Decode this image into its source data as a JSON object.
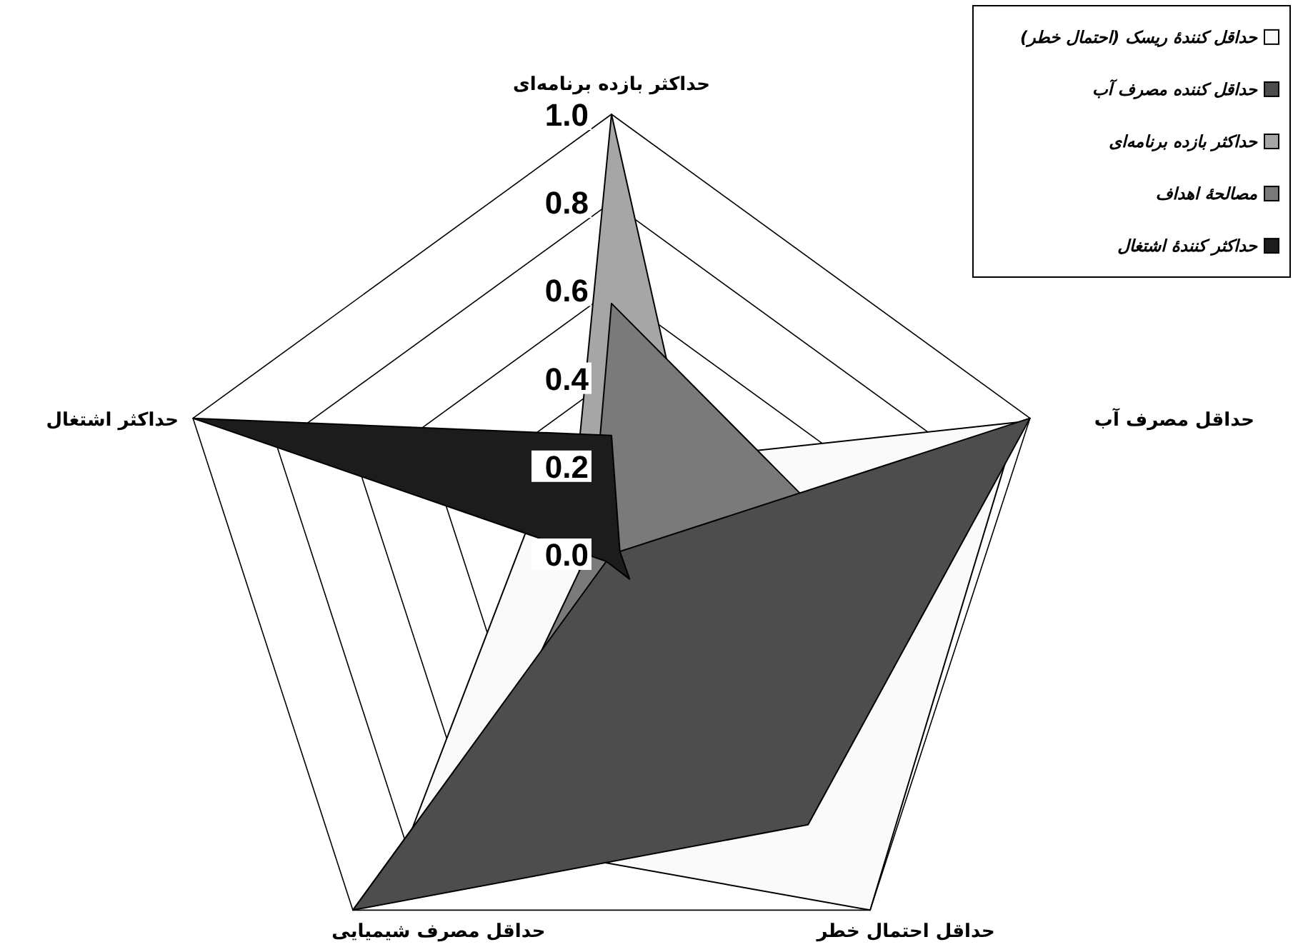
{
  "chart_data": {
    "type": "radar",
    "categories": [
      "حداکثر بازده برنامه‌ای",
      "حداقل مصرف آب",
      "حداقل احتمال خطر",
      "حداقل مصرف شیمیایی",
      "حداکثر اشتغال"
    ],
    "series": [
      {
        "name": "حداقل کنندهٔ ریسک (احتمال خطر)",
        "color": "#fafafa",
        "values": [
          0.2,
          0.97,
          1.0,
          0.77,
          0.2
        ]
      },
      {
        "name": "حداقل کننده مصرف آب",
        "color": "#4d4d4d",
        "values": [
          0.0,
          1.0,
          0.76,
          1.0,
          0.0
        ]
      },
      {
        "name": "حداکثر بازده برنامه‌ای",
        "color": "#a6a6a6",
        "values": [
          1.0,
          0.22,
          0.1,
          0.1,
          0.1
        ]
      },
      {
        "name": "مصالحهٔ اهداف",
        "color": "#7a7a7a",
        "values": [
          0.57,
          0.45,
          0.19,
          0.27,
          0.05
        ]
      },
      {
        "name": "حداکثر کنندهٔ اشتغال",
        "color": "#1c1c1c",
        "values": [
          0.27,
          0.02,
          0.07,
          0.02,
          1.0
        ]
      }
    ],
    "ylim": [
      0,
      1
    ],
    "yticks": [
      {
        "value": 0,
        "label": "0.0"
      },
      {
        "value": 0.2,
        "label": "0.2"
      },
      {
        "value": 0.4,
        "label": "0.4"
      },
      {
        "value": 0.6,
        "label": "0.6"
      },
      {
        "value": 0.8,
        "label": "0.8"
      },
      {
        "value": 1,
        "label": "1.0"
      }
    ],
    "grid": true,
    "legend": "top right"
  }
}
